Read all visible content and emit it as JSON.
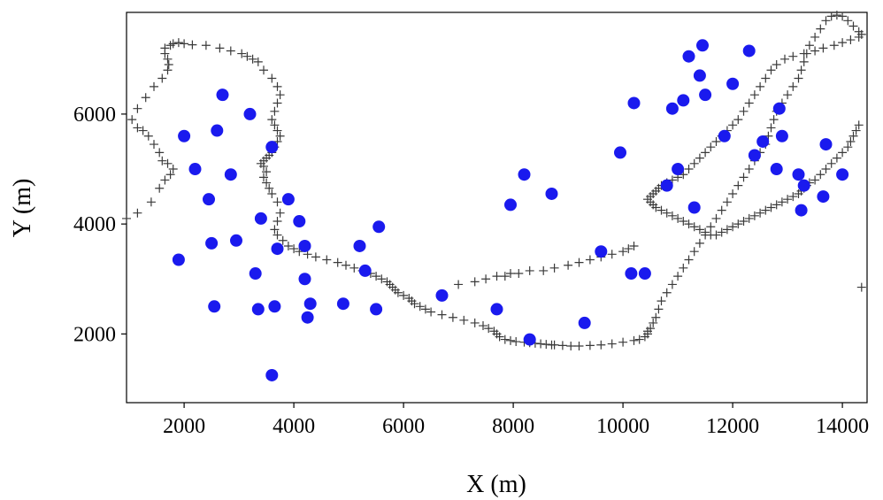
{
  "chart_data": {
    "type": "scatter",
    "title": "",
    "xlabel": "X (m)",
    "ylabel": "Y (m)",
    "xlim": [
      950,
      14450
    ],
    "ylim": [
      750,
      7850
    ],
    "xticks": [
      2000,
      4000,
      6000,
      8000,
      10000,
      12000,
      14000
    ],
    "yticks": [
      2000,
      4000,
      6000
    ],
    "grid": false,
    "legend": "none",
    "colors": {
      "points": "#1a1aee",
      "boundary": "#3a3a3a",
      "axes": "#000000"
    },
    "series": [
      {
        "marker": "plus",
        "x": [
          950,
          1150,
          1400,
          1550,
          1650,
          1750,
          1800,
          1700,
          1600,
          1550,
          1450,
          1350,
          1250,
          1150,
          1050,
          1150,
          1300,
          1450,
          1600,
          1700,
          1720,
          1700,
          1650,
          1650,
          1750,
          1800,
          1900,
          2000,
          2150,
          2400,
          2650,
          2850,
          3050,
          3150,
          3250,
          3350,
          3450,
          3600,
          3700,
          3750,
          3700,
          3650,
          3600,
          3650,
          3700,
          3750,
          3700,
          3650,
          3600,
          3550,
          3500,
          3450,
          3400,
          3450,
          3500,
          3450,
          3500,
          3550,
          3600,
          3700,
          3750,
          3700,
          3650,
          3700,
          3800,
          3900,
          4000,
          4100,
          4250,
          4400,
          4600,
          4800,
          4950,
          5100,
          5250,
          5400,
          5500,
          5600,
          5700,
          5750,
          5800,
          5850,
          5900,
          6000,
          6100,
          6150,
          6200,
          6300,
          6400,
          6500,
          6700,
          6900,
          7100,
          7300,
          7450,
          7550,
          7650,
          7700,
          7750,
          7850,
          7950,
          8050,
          8200,
          8300,
          8400,
          8500,
          8600,
          8700,
          8750,
          8900,
          9050,
          9200,
          9400,
          9600,
          9800,
          10000,
          10200,
          10300,
          10400,
          10450,
          10450,
          10500,
          10550,
          10600,
          10650,
          10700,
          10800,
          10900,
          11000,
          11100,
          11200,
          11300,
          11400,
          11500,
          11600,
          11700,
          11800,
          11900,
          12000,
          12100,
          12200,
          12300,
          12400,
          12500,
          12600,
          12650,
          12700,
          12750,
          12800,
          12900,
          13000,
          13100,
          13200,
          13250,
          13300,
          13350,
          13400,
          13500,
          13600,
          13700,
          13800,
          13900,
          14000,
          14100,
          14200,
          14300,
          14350,
          14300,
          14150,
          14000,
          13850,
          13650,
          13500,
          13300,
          13100,
          12950,
          12800,
          12700,
          12600,
          12500,
          12400,
          12300,
          12200,
          12100,
          12000,
          11900,
          11800,
          11700,
          11600,
          11500,
          11400,
          11300,
          11200,
          11100,
          11000,
          10900,
          10800,
          10700,
          10650,
          10600,
          10550,
          10500,
          10450,
          10500,
          10550,
          10600,
          10700,
          10800,
          10900,
          11000,
          11100,
          11200,
          11300,
          11400,
          11500,
          11600,
          11700,
          11800,
          11900,
          12000,
          12100,
          12200,
          12300,
          12400,
          12500,
          12600,
          12700,
          12800,
          12900,
          13000,
          13100,
          13200,
          13250,
          13300,
          13350,
          13400,
          13500,
          13600,
          13700,
          13800,
          13900,
          14000,
          14100,
          14150,
          14200,
          14250,
          14300,
          14350,
          7000,
          7300,
          7500,
          7700,
          7850,
          7950,
          8100,
          8300,
          8550,
          8750,
          9000,
          9200,
          9400,
          9600,
          9800,
          10000,
          10100,
          10200
        ],
        "y": [
          4100,
          4200,
          4400,
          4650,
          4800,
          4900,
          5000,
          5100,
          5150,
          5300,
          5450,
          5600,
          5700,
          5750,
          5900,
          6100,
          6300,
          6500,
          6650,
          6800,
          6900,
          7000,
          7100,
          7200,
          7250,
          7280,
          7300,
          7280,
          7260,
          7250,
          7200,
          7150,
          7100,
          7050,
          7000,
          6950,
          6800,
          6650,
          6500,
          6350,
          6200,
          6050,
          5900,
          5800,
          5700,
          5600,
          5500,
          5400,
          5300,
          5250,
          5200,
          5150,
          5100,
          5050,
          4950,
          4850,
          4750,
          4650,
          4550,
          4400,
          4200,
          4050,
          3900,
          3800,
          3700,
          3600,
          3550,
          3500,
          3450,
          3400,
          3350,
          3300,
          3250,
          3200,
          3150,
          3100,
          3050,
          3000,
          2950,
          2900,
          2850,
          2800,
          2750,
          2700,
          2650,
          2600,
          2550,
          2500,
          2450,
          2400,
          2350,
          2300,
          2250,
          2200,
          2150,
          2100,
          2050,
          2000,
          1950,
          1900,
          1880,
          1860,
          1850,
          1840,
          1830,
          1820,
          1810,
          1800,
          1800,
          1790,
          1780,
          1780,
          1790,
          1800,
          1820,
          1850,
          1880,
          1900,
          1950,
          2000,
          2050,
          2100,
          2200,
          2300,
          2450,
          2600,
          2750,
          2900,
          3050,
          3200,
          3350,
          3500,
          3650,
          3800,
          3950,
          4100,
          4250,
          4400,
          4550,
          4700,
          4850,
          5000,
          5150,
          5300,
          5450,
          5600,
          5750,
          5900,
          6050,
          6200,
          6350,
          6500,
          6650,
          6800,
          6950,
          7100,
          7250,
          7400,
          7550,
          7700,
          7780,
          7800,
          7780,
          7700,
          7600,
          7500,
          7450,
          7400,
          7350,
          7300,
          7250,
          7200,
          7150,
          7100,
          7050,
          7000,
          6900,
          6800,
          6650,
          6500,
          6350,
          6200,
          6050,
          5900,
          5800,
          5700,
          5600,
          5500,
          5400,
          5300,
          5200,
          5100,
          5000,
          4900,
          4850,
          4800,
          4750,
          4700,
          4650,
          4600,
          4550,
          4500,
          4450,
          4400,
          4350,
          4300,
          4250,
          4200,
          4150,
          4100,
          4050,
          4000,
          3950,
          3900,
          3850,
          3800,
          3800,
          3850,
          3900,
          3950,
          4000,
          4050,
          4100,
          4150,
          4200,
          4250,
          4300,
          4350,
          4400,
          4450,
          4500,
          4550,
          4600,
          4650,
          4700,
          4750,
          4800,
          4900,
          5000,
          5100,
          5200,
          5300,
          5400,
          5500,
          5600,
          5700,
          5800,
          2850,
          2900,
          2950,
          3000,
          3050,
          3050,
          3100,
          3100,
          3150,
          3150,
          3200,
          3250,
          3300,
          3350,
          3400,
          3450,
          3500,
          3550,
          3600
        ]
      },
      {
        "marker": "circle",
        "x": [
          1900,
          2000,
          2200,
          2450,
          2500,
          2550,
          2600,
          2700,
          2850,
          2950,
          3200,
          3300,
          3350,
          3400,
          3600,
          3650,
          3700,
          3900,
          4100,
          4200,
          4200,
          4250,
          4300,
          4900,
          5200,
          5300,
          5500,
          5550,
          6700,
          7700,
          7950,
          8200,
          8300,
          8700,
          9300,
          9600,
          9950,
          10150,
          10200,
          10400,
          10800,
          10900,
          11000,
          11100,
          11200,
          11300,
          11400,
          11450,
          11500,
          11850,
          12000,
          12300,
          12400,
          12550,
          12800,
          12850,
          12900,
          13200,
          13250,
          13300,
          13650,
          13700,
          14000,
          3600
        ],
        "y": [
          3350,
          5600,
          5000,
          4450,
          3650,
          2500,
          5700,
          6350,
          4900,
          3700,
          6000,
          3100,
          2450,
          4100,
          5400,
          2500,
          3550,
          4450,
          4050,
          3600,
          3000,
          2300,
          2550,
          2550,
          3600,
          3150,
          2450,
          3950,
          2700,
          2450,
          4350,
          4900,
          1900,
          4550,
          2200,
          3500,
          5300,
          3100,
          6200,
          3100,
          4700,
          6100,
          5000,
          6250,
          7050,
          4300,
          6700,
          7250,
          6350,
          5600,
          6550,
          7150,
          5250,
          5500,
          5000,
          6100,
          5600,
          4900,
          4250,
          4700,
          4500,
          5450,
          4900,
          1250
        ]
      }
    ]
  }
}
